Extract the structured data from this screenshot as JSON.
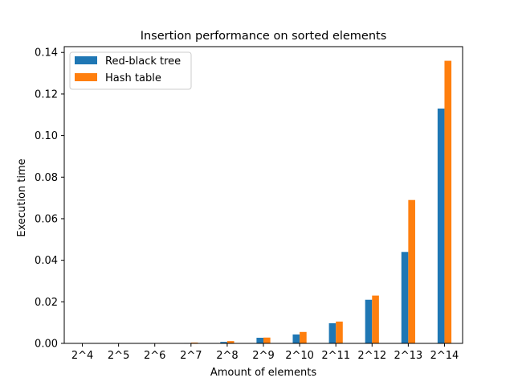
{
  "chart_data": {
    "type": "bar",
    "title": "Insertion performance on sorted elements",
    "xlabel": "Amount of elements",
    "ylabel": "Execution time",
    "categories": [
      "2^4",
      "2^5",
      "2^6",
      "2^7",
      "2^8",
      "2^9",
      "2^10",
      "2^11",
      "2^12",
      "2^13",
      "2^14"
    ],
    "series": [
      {
        "name": "Red-black tree",
        "color": "#1f77b4",
        "values": [
          1e-05,
          2e-05,
          5e-05,
          0.0002,
          0.0007,
          0.0027,
          0.0043,
          0.0097,
          0.021,
          0.044,
          0.113
        ]
      },
      {
        "name": "Hash table",
        "color": "#ff7f0e",
        "values": [
          2e-05,
          5e-05,
          0.0002,
          0.0004,
          0.0011,
          0.0028,
          0.0055,
          0.0105,
          0.023,
          0.069,
          0.136
        ]
      }
    ],
    "ylim": [
      0,
      0.1428
    ],
    "yticks": [
      0.0,
      0.02,
      0.04,
      0.06,
      0.08,
      0.1,
      0.12,
      0.14
    ],
    "ytick_labels": [
      "0.00",
      "0.02",
      "0.04",
      "0.06",
      "0.08",
      "0.10",
      "0.12",
      "0.14"
    ],
    "grid": false,
    "legend_position": "top-left"
  }
}
